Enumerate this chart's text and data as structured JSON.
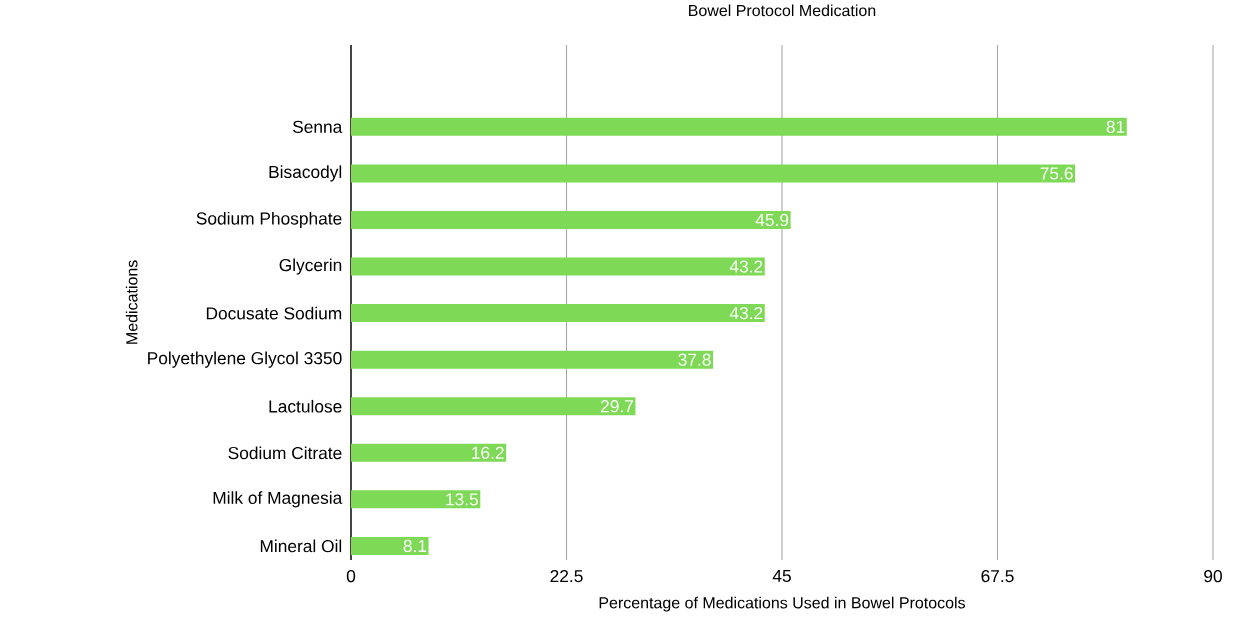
{
  "chart_data": {
    "type": "bar",
    "orientation": "horizontal",
    "title": "Bowel Protocol Medication",
    "xlabel": "Percentage of Medications Used in Bowel Protocols",
    "ylabel": "Medications",
    "categories": [
      "Senna",
      "Bisacodyl",
      "Sodium Phosphate",
      "Glycerin",
      "Docusate Sodium",
      "Polyethylene Glycol 3350",
      "Lactulose",
      "Sodium Citrate",
      "Milk of Magnesia",
      "Mineral Oil"
    ],
    "values": [
      81,
      75.6,
      45.9,
      43.2,
      43.2,
      37.8,
      29.7,
      16.2,
      13.5,
      8.1
    ],
    "color": "#7ed957",
    "xlim": [
      0,
      90
    ],
    "xticks": [
      0,
      22.5,
      45,
      67.5,
      90
    ],
    "grid": "x",
    "data_labels": true
  }
}
